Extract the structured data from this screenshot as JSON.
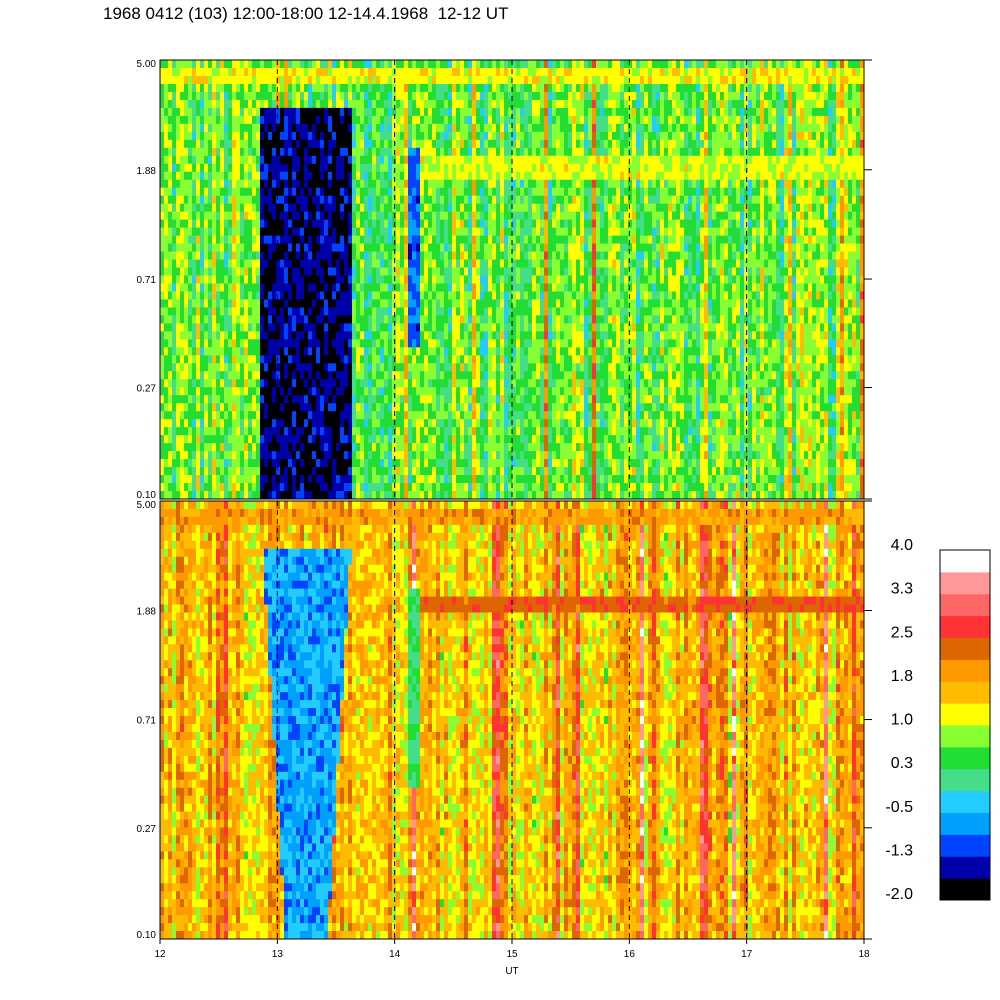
{
  "title": "1968 0412 (103) 12:00-18:00 12-14.4.1968  12-12 UT",
  "chart_data": {
    "type": "heatmap",
    "xlabel": "UT",
    "xlim": [
      12,
      18
    ],
    "x_ticks": [
      "12",
      "13",
      "14",
      "15",
      "16",
      "17",
      "18"
    ],
    "dashed_gridlines_x": [
      13,
      14,
      15,
      16,
      17
    ],
    "y_scale": "log",
    "ylim": [
      0.1,
      5.0
    ],
    "panels": [
      {
        "name": "upper",
        "y_ticks": [
          "5.00",
          "1.88",
          "0.71",
          "0.27",
          "0.10"
        ],
        "dominant_level": 0.6,
        "features": [
          {
            "kind": "bright-band",
            "y": 4.3,
            "x": [
              12,
              18
            ],
            "level": 1.2
          },
          {
            "kind": "bright-band",
            "y": 1.9,
            "x": [
              14.2,
              18
            ],
            "level": 1.1
          },
          {
            "kind": "low-region",
            "x": [
              12.85,
              13.65
            ],
            "level": -1.6
          },
          {
            "kind": "low-streak",
            "x": 14.17,
            "level": -1.0
          }
        ]
      },
      {
        "name": "lower",
        "y_ticks": [
          "5.00",
          "1.88",
          "0.71",
          "0.27",
          "0.10"
        ],
        "dominant_level": 1.6,
        "features": [
          {
            "kind": "bright-band",
            "y": 4.3,
            "x": [
              12,
              18
            ],
            "level": 1.9
          },
          {
            "kind": "bright-band",
            "y": 2.0,
            "x": [
              14.2,
              18
            ],
            "level": 2.4
          },
          {
            "kind": "low-region",
            "x": [
              12.85,
              13.65
            ],
            "level": -0.6
          },
          {
            "kind": "low-streak",
            "x": 14.17,
            "level": 0.2
          }
        ]
      }
    ],
    "colorbar": {
      "labels": [
        "4.0",
        "3.3",
        "2.5",
        "1.8",
        "1.0",
        "0.3",
        "-0.5",
        "-1.3",
        "-2.0"
      ],
      "range": [
        -2.0,
        4.0
      ],
      "colors": [
        "#000000",
        "#0000aa",
        "#0044ff",
        "#00a0ff",
        "#22ccff",
        "#44dd88",
        "#22dd33",
        "#88ff33",
        "#ffff00",
        "#ffbb00",
        "#ff9900",
        "#dd6600",
        "#ff3333",
        "#ff6666",
        "#ff9999",
        "#ffffff"
      ]
    }
  }
}
